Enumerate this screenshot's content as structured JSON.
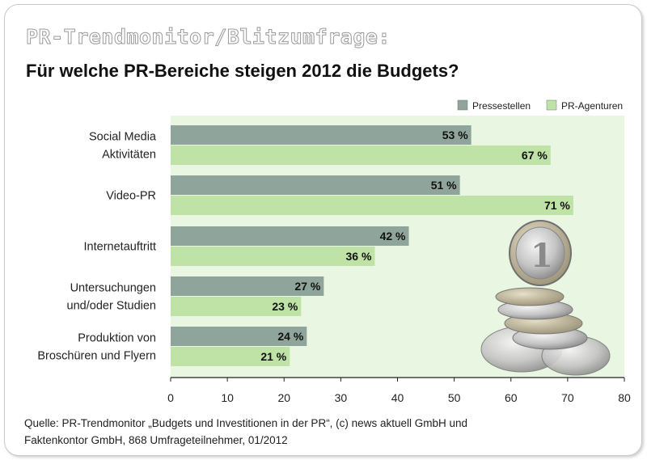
{
  "kicker": "PR-Trendmonitor/Blitzumfrage:",
  "title": "Für welche PR-Bereiche steigen 2012 die Budgets?",
  "source": {
    "line1": "Quelle: PR-Trendmonitor „Budgets und Investitionen in der PR“, (c) news aktuell GmbH und",
    "line2": "Faktenkontor GmbH, 868 Umfrageteilnehmer, 01/2012"
  },
  "colors": {
    "plot_background": "#e9f6e1",
    "pressestellen": "#8fa49b",
    "agenturen": "#bfe2a7"
  },
  "chart_data": {
    "type": "bar",
    "orientation": "horizontal",
    "categories": [
      [
        "Social Media",
        "Aktivitäten"
      ],
      [
        "Video-PR"
      ],
      [
        "Internetauftritt"
      ],
      [
        "Untersuchungen",
        "und/oder Studien"
      ],
      [
        "Produktion von",
        "Broschüren und Flyern"
      ]
    ],
    "series": [
      {
        "name": "Pressestellen",
        "values": [
          53,
          51,
          42,
          27,
          24
        ],
        "labels": [
          "53 %",
          "51 %",
          "42 %",
          "27 %",
          "24 %"
        ]
      },
      {
        "name": "PR-Agenturen",
        "values": [
          67,
          71,
          36,
          23,
          21
        ],
        "labels": [
          "67 %",
          "71 %",
          "36 %",
          "23 %",
          "21 %"
        ]
      }
    ],
    "xlim": [
      0,
      80
    ],
    "xticks": [
      0,
      10,
      20,
      30,
      40,
      50,
      60,
      70,
      80
    ],
    "legend_position": "top-right",
    "grid": false
  },
  "illustration": "euro-coins"
}
